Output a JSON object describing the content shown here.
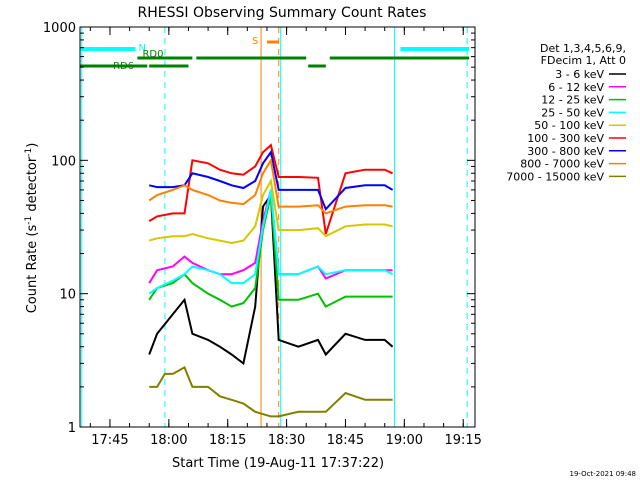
{
  "chart_data": {
    "type": "line",
    "title": "RHESSI Observing Summary Count Rates",
    "xlabel": "Start Time (19-Aug-11 17:37:22)",
    "ylabel": "Count Rate (s",
    "ylabel_sup": "-1",
    "ylabel_tail": " detector",
    "ylabel_end": ")",
    "y_scale": "log",
    "ylim": [
      1,
      1000
    ],
    "y_ticks": [
      "1",
      "10",
      "100",
      "1000"
    ],
    "xlim": [
      "17:37:22",
      "19:18:00"
    ],
    "x_ticks": [
      "17:45",
      "18:00",
      "18:15",
      "18:30",
      "18:45",
      "19:00",
      "19:15"
    ],
    "legend_header": [
      "Det 1,3,4,5,6,9,",
      "FDecim 1, Att 0"
    ],
    "series": [
      {
        "name": "3 - 6 keV",
        "color": "#000000",
        "values": [
          [
            "17:55:00",
            3.5
          ],
          [
            "17:57:00",
            5.0
          ],
          [
            "18:01:00",
            7.0
          ],
          [
            "18:04:00",
            9.0
          ],
          [
            "18:06:00",
            5.0
          ],
          [
            "18:10:00",
            4.5
          ],
          [
            "18:13:00",
            4.0
          ],
          [
            "18:16:00",
            3.5
          ],
          [
            "18:19:00",
            3.0
          ],
          [
            "18:22:00",
            8.0
          ],
          [
            "18:24:00",
            45.0
          ],
          [
            "18:26:00",
            55.0
          ],
          [
            "18:28:00",
            4.5
          ],
          [
            "18:33:00",
            4.0
          ],
          [
            "18:38:00",
            4.5
          ],
          [
            "18:40:00",
            3.5
          ],
          [
            "18:45:00",
            5.0
          ],
          [
            "18:50:00",
            4.5
          ],
          [
            "18:55:00",
            4.5
          ],
          [
            "18:57:00",
            4.0
          ]
        ]
      },
      {
        "name": "6 - 12 keV",
        "color": "#ff00ff",
        "values": [
          [
            "17:55:00",
            12.0
          ],
          [
            "17:57:00",
            15.0
          ],
          [
            "18:01:00",
            16.0
          ],
          [
            "18:04:00",
            19.0
          ],
          [
            "18:06:00",
            17.0
          ],
          [
            "18:10:00",
            15.0
          ],
          [
            "18:13:00",
            14.0
          ],
          [
            "18:16:00",
            14.0
          ],
          [
            "18:19:00",
            15.0
          ],
          [
            "18:22:00",
            17.0
          ],
          [
            "18:24:00",
            35.0
          ],
          [
            "18:26:00",
            60.0
          ],
          [
            "18:28:00",
            14.0
          ],
          [
            "18:33:00",
            14.0
          ],
          [
            "18:38:00",
            16.0
          ],
          [
            "18:40:00",
            13.0
          ],
          [
            "18:45:00",
            15.0
          ],
          [
            "18:50:00",
            15.0
          ],
          [
            "18:55:00",
            15.0
          ],
          [
            "18:57:00",
            15.0
          ]
        ]
      },
      {
        "name": "12 - 25 keV",
        "color": "#00c000",
        "values": [
          [
            "17:55:00",
            9.0
          ],
          [
            "17:57:00",
            11.0
          ],
          [
            "18:01:00",
            12.0
          ],
          [
            "18:04:00",
            14.0
          ],
          [
            "18:06:00",
            12.0
          ],
          [
            "18:10:00",
            10.0
          ],
          [
            "18:13:00",
            9.0
          ],
          [
            "18:16:00",
            8.0
          ],
          [
            "18:19:00",
            8.5
          ],
          [
            "18:22:00",
            11.0
          ],
          [
            "18:24:00",
            30.0
          ],
          [
            "18:26:00",
            55.0
          ],
          [
            "18:28:00",
            9.0
          ],
          [
            "18:33:00",
            9.0
          ],
          [
            "18:38:00",
            10.0
          ],
          [
            "18:40:00",
            8.0
          ],
          [
            "18:45:00",
            9.5
          ],
          [
            "18:50:00",
            9.5
          ],
          [
            "18:55:00",
            9.5
          ],
          [
            "18:57:00",
            9.5
          ]
        ]
      },
      {
        "name": "25 - 50 keV",
        "color": "#00ffff",
        "values": [
          [
            "17:55:00",
            10.0
          ],
          [
            "17:57:00",
            11.0
          ],
          [
            "18:01:00",
            12.5
          ],
          [
            "18:04:00",
            14.0
          ],
          [
            "18:06:00",
            16.0
          ],
          [
            "18:10:00",
            15.0
          ],
          [
            "18:13:00",
            14.0
          ],
          [
            "18:16:00",
            12.0
          ],
          [
            "18:19:00",
            12.0
          ],
          [
            "18:22:00",
            14.0
          ],
          [
            "18:24:00",
            32.0
          ],
          [
            "18:26:00",
            60.0
          ],
          [
            "18:28:00",
            14.0
          ],
          [
            "18:33:00",
            14.0
          ],
          [
            "18:38:00",
            16.0
          ],
          [
            "18:40:00",
            14.0
          ],
          [
            "18:45:00",
            15.0
          ],
          [
            "18:50:00",
            15.0
          ],
          [
            "18:55:00",
            15.0
          ],
          [
            "18:57:00",
            14.0
          ]
        ]
      },
      {
        "name": "50 - 100 keV",
        "color": "#d4c800",
        "values": [
          [
            "17:55:00",
            25.0
          ],
          [
            "17:57:00",
            26.0
          ],
          [
            "18:01:00",
            27.0
          ],
          [
            "18:04:00",
            27.0
          ],
          [
            "18:06:00",
            28.0
          ],
          [
            "18:10:00",
            26.0
          ],
          [
            "18:13:00",
            25.0
          ],
          [
            "18:16:00",
            24.0
          ],
          [
            "18:19:00",
            25.0
          ],
          [
            "18:22:00",
            32.0
          ],
          [
            "18:24:00",
            55.0
          ],
          [
            "18:26:00",
            70.0
          ],
          [
            "18:28:00",
            30.0
          ],
          [
            "18:33:00",
            30.0
          ],
          [
            "18:38:00",
            31.0
          ],
          [
            "18:40:00",
            27.0
          ],
          [
            "18:45:00",
            32.0
          ],
          [
            "18:50:00",
            33.0
          ],
          [
            "18:55:00",
            33.0
          ],
          [
            "18:57:00",
            32.0
          ]
        ]
      },
      {
        "name": "100 - 300 keV",
        "color": "#ff0000",
        "values": [
          [
            "17:55:00",
            35.0
          ],
          [
            "17:57:00",
            38.0
          ],
          [
            "18:01:00",
            40.0
          ],
          [
            "18:04:00",
            40.0
          ],
          [
            "18:06:00",
            100.0
          ],
          [
            "18:10:00",
            95.0
          ],
          [
            "18:13:00",
            85.0
          ],
          [
            "18:16:00",
            80.0
          ],
          [
            "18:19:00",
            78.0
          ],
          [
            "18:22:00",
            90.0
          ],
          [
            "18:24:00",
            115.0
          ],
          [
            "18:26:00",
            130.0
          ],
          [
            "18:28:00",
            75.0
          ],
          [
            "18:33:00",
            75.0
          ],
          [
            "18:38:00",
            74.0
          ],
          [
            "18:40:00",
            28.0
          ],
          [
            "18:45:00",
            80.0
          ],
          [
            "18:50:00",
            85.0
          ],
          [
            "18:55:00",
            85.0
          ],
          [
            "18:57:00",
            80.0
          ]
        ]
      },
      {
        "name": "300 - 800 keV",
        "color": "#0000ff",
        "values": [
          [
            "17:55:00",
            65.0
          ],
          [
            "17:57:00",
            63.0
          ],
          [
            "18:01:00",
            63.0
          ],
          [
            "18:04:00",
            65.0
          ],
          [
            "18:06:00",
            80.0
          ],
          [
            "18:10:00",
            75.0
          ],
          [
            "18:13:00",
            70.0
          ],
          [
            "18:16:00",
            65.0
          ],
          [
            "18:19:00",
            62.0
          ],
          [
            "18:22:00",
            70.0
          ],
          [
            "18:24:00",
            95.0
          ],
          [
            "18:26:00",
            115.0
          ],
          [
            "18:28:00",
            60.0
          ],
          [
            "18:33:00",
            60.0
          ],
          [
            "18:38:00",
            60.0
          ],
          [
            "18:40:00",
            43.0
          ],
          [
            "18:45:00",
            62.0
          ],
          [
            "18:50:00",
            65.0
          ],
          [
            "18:55:00",
            65.0
          ],
          [
            "18:57:00",
            60.0
          ]
        ]
      },
      {
        "name": "800 - 7000 keV",
        "color": "#ff8000",
        "values": [
          [
            "17:55:00",
            50.0
          ],
          [
            "17:57:00",
            55.0
          ],
          [
            "18:01:00",
            60.0
          ],
          [
            "18:04:00",
            65.0
          ],
          [
            "18:06:00",
            60.0
          ],
          [
            "18:10:00",
            55.0
          ],
          [
            "18:13:00",
            50.0
          ],
          [
            "18:16:00",
            48.0
          ],
          [
            "18:19:00",
            47.0
          ],
          [
            "18:22:00",
            55.0
          ],
          [
            "18:24:00",
            80.0
          ],
          [
            "18:26:00",
            100.0
          ],
          [
            "18:28:00",
            45.0
          ],
          [
            "18:33:00",
            45.0
          ],
          [
            "18:38:00",
            46.0
          ],
          [
            "18:40:00",
            40.0
          ],
          [
            "18:45:00",
            45.0
          ],
          [
            "18:50:00",
            46.0
          ],
          [
            "18:55:00",
            46.0
          ],
          [
            "18:57:00",
            45.0
          ]
        ]
      },
      {
        "name": "7000 - 15000 keV",
        "color": "#808000",
        "values": [
          [
            "17:55:00",
            2.0
          ],
          [
            "17:57:00",
            2.0
          ],
          [
            "17:59:00",
            2.5
          ],
          [
            "18:01:00",
            2.5
          ],
          [
            "18:04:00",
            2.8
          ],
          [
            "18:06:00",
            2.0
          ],
          [
            "18:10:00",
            2.0
          ],
          [
            "18:13:00",
            1.7
          ],
          [
            "18:16:00",
            1.6
          ],
          [
            "18:19:00",
            1.5
          ],
          [
            "18:22:00",
            1.3
          ],
          [
            "18:26:00",
            1.2
          ],
          [
            "18:28:00",
            1.2
          ],
          [
            "18:33:00",
            1.3
          ],
          [
            "18:38:00",
            1.3
          ],
          [
            "18:40:00",
            1.3
          ],
          [
            "18:45:00",
            1.8
          ],
          [
            "18:50:00",
            1.6
          ],
          [
            "18:55:00",
            1.6
          ],
          [
            "18:57:00",
            1.6
          ]
        ]
      }
    ],
    "state_bars": [
      {
        "label": "N",
        "color": "#00ffff",
        "row": "night",
        "spans": [
          [
            "17:37:22",
            "17:51:30"
          ],
          [
            "18:59:00",
            "19:16:30"
          ]
        ]
      },
      {
        "label": "RD0",
        "color": "#008000",
        "row": "saa_upper",
        "spans": [
          [
            "17:52:00",
            "18:06:00"
          ],
          [
            "18:07:00",
            "18:35:00"
          ],
          [
            "18:41:00",
            "19:16:30"
          ]
        ]
      },
      {
        "label": "RD6",
        "color": "#008000",
        "row": "saa_lower",
        "spans": [
          [
            "17:37:22",
            "17:54:30"
          ],
          [
            "17:55:00",
            "18:05:00"
          ],
          [
            "18:35:30",
            "18:40:00"
          ]
        ]
      },
      {
        "label": "S",
        "color": "#ff8000",
        "row": "slew",
        "spans": [
          [
            "18:25:00",
            "18:28:00"
          ]
        ]
      }
    ],
    "vlines": [
      {
        "time": "17:37:50",
        "color": "#00ffff",
        "style": "solid"
      },
      {
        "time": "17:59:00",
        "color": "#00ffff",
        "style": "dashed"
      },
      {
        "time": "18:57:30",
        "color": "#00ffff",
        "style": "solid"
      },
      {
        "time": "19:16:00",
        "color": "#00ffff",
        "style": "dashed"
      },
      {
        "time": "18:23:30",
        "color": "#ff8000",
        "style": "solid"
      },
      {
        "time": "18:28:00",
        "color": "#ff8000",
        "style": "dashed"
      },
      {
        "time": "18:28:30",
        "color": "#00ffff",
        "style": "solid"
      }
    ],
    "footer_timestamp": "19-Oct-2021 09:48",
    "grid": false,
    "legend_position": "right"
  }
}
